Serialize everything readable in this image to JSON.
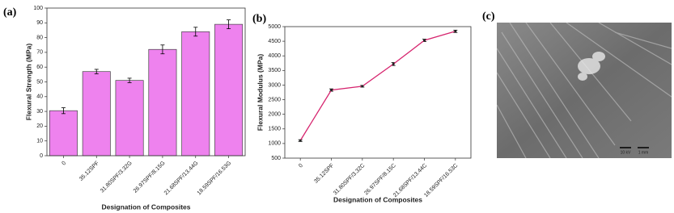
{
  "chart_data": [
    {
      "type": "bar",
      "panel_label": "(a)",
      "y_label": "Flexural Strength (MPa)",
      "x_label": "Designation of Composites",
      "categories": [
        "0",
        "35.12SPF",
        "31.80SPF/3.32G",
        "26.97SPF/8.15G",
        "21.68SPF/13.44G",
        "18.59SPF/16.53G"
      ],
      "values": [
        30.5,
        57,
        51,
        72,
        84,
        89
      ],
      "errors": [
        2,
        1.5,
        1.5,
        3,
        3,
        3
      ],
      "color": "#ee82ee",
      "ylim": [
        0,
        100
      ],
      "yticks": [
        0,
        10,
        20,
        30,
        40,
        50,
        60,
        70,
        80,
        90,
        100
      ]
    },
    {
      "type": "line",
      "panel_label": "(b)",
      "y_label": "Flexural Modulus (MPa)",
      "x_label": "Designation of Composites",
      "categories": [
        "0",
        "35.12SPF",
        "31.80SPF/3.32C",
        "26.97SPF/8.15C",
        "21.68SPF/13.44C",
        "18.59SPF/16.53C"
      ],
      "values": [
        1100,
        2830,
        2960,
        3720,
        4530,
        4840
      ],
      "errors": [
        30,
        40,
        30,
        50,
        40,
        40
      ],
      "color": "#d6246e",
      "ylim": [
        500,
        5000
      ],
      "yticks": [
        500,
        1000,
        1500,
        2000,
        2500,
        3000,
        3500,
        4000,
        4500,
        5000
      ]
    }
  ],
  "image": {
    "panel_label": "(c)",
    "scale_labels": [
      "10 kV",
      "1 mm"
    ]
  }
}
